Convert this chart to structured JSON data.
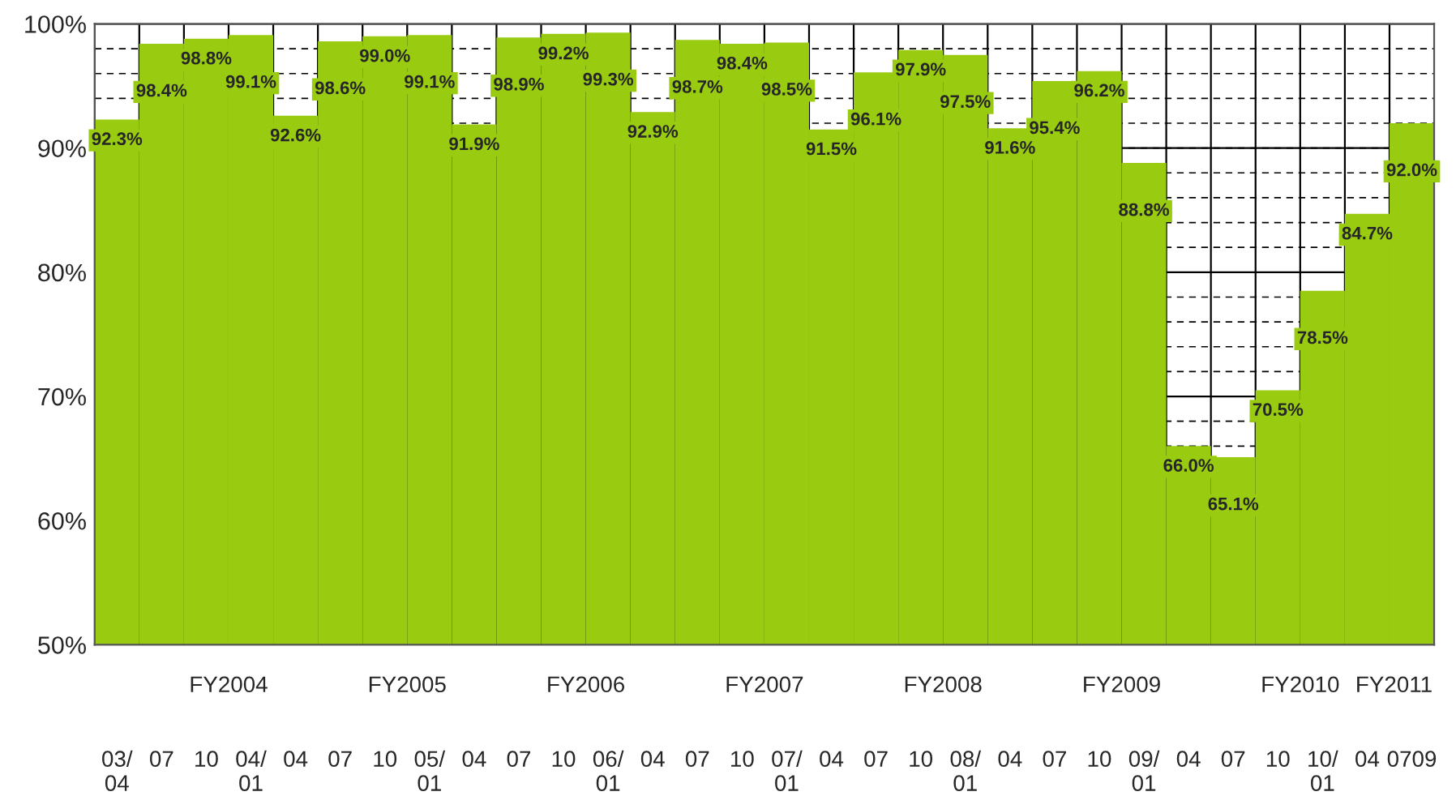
{
  "chart_data": {
    "type": "bar",
    "categories": [
      "03/\n04",
      "07",
      "10",
      "04/\n01",
      "04",
      "07",
      "10",
      "05/\n01",
      "04",
      "07",
      "10",
      "06/\n01",
      "04",
      "07",
      "10",
      "07/\n01",
      "04",
      "07",
      "10",
      "08/\n01",
      "04",
      "07",
      "10",
      "09/\n01",
      "04",
      "07",
      "10",
      "10/\n01",
      "04",
      "0709"
    ],
    "values": [
      92.3,
      98.4,
      98.8,
      99.1,
      92.6,
      98.6,
      99.0,
      99.1,
      91.9,
      98.9,
      99.2,
      99.3,
      92.9,
      98.7,
      98.4,
      98.5,
      91.5,
      96.1,
      97.9,
      97.5,
      91.6,
      95.4,
      96.2,
      88.8,
      66.0,
      65.1,
      70.5,
      78.5,
      84.7,
      92.0
    ],
    "value_labels": [
      "92.3%",
      "98.4%",
      "98.8%",
      "99.1%",
      "92.6%",
      "98.6%",
      "99.0%",
      "99.1%",
      "91.9%",
      "98.9%",
      "99.2%",
      "99.3%",
      "92.9%",
      "98.7%",
      "98.4%",
      "98.5%",
      "91.5%",
      "96.1%",
      "97.9%",
      "97.5%",
      "91.6%",
      "95.4%",
      "96.2%",
      "88.8%",
      "66.0%",
      "65.1%",
      "70.5%",
      "78.5%",
      "84.7%",
      "92.0%"
    ],
    "color": "#99cc11",
    "ylim": [
      50,
      100
    ],
    "yticks": [
      {
        "value": 50,
        "label": "50%"
      },
      {
        "value": 60,
        "label": "60%"
      },
      {
        "value": 70,
        "label": "70%"
      },
      {
        "value": 80,
        "label": "80%"
      },
      {
        "value": 90,
        "label": "90%"
      },
      {
        "value": 100,
        "label": "100%"
      }
    ],
    "grid": true,
    "annotations": [
      "FY2004",
      "FY2005",
      "FY2006",
      "FY2007",
      "FY2008",
      "FY2009",
      "FY2010",
      "FY2011"
    ]
  }
}
